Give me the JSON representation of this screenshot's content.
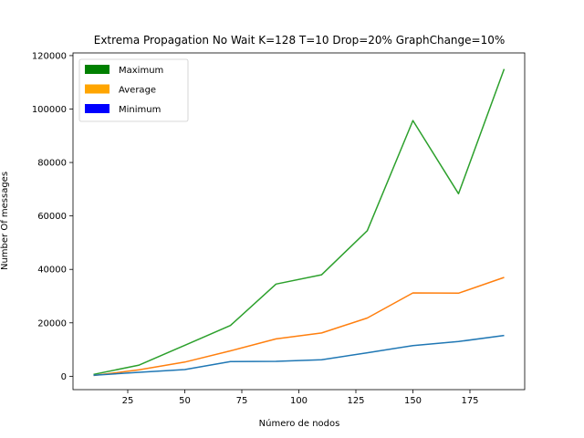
{
  "chart_data": {
    "type": "line",
    "title": "Extrema Propagation No Wait K=128 T=10 Drop=20% GraphChange=10%",
    "xlabel": "Número de nodos",
    "ylabel": "Number Of messages",
    "x": [
      10,
      30,
      50,
      70,
      90,
      110,
      130,
      150,
      170,
      190
    ],
    "xlim": [
      1,
      199
    ],
    "ylim": [
      -5000,
      121000
    ],
    "xticks": [
      25,
      50,
      75,
      100,
      125,
      150,
      175
    ],
    "xtick_labels": [
      "25",
      "50",
      "75",
      "100",
      "125",
      "150",
      "175"
    ],
    "yticks": [
      0,
      20000,
      40000,
      60000,
      80000,
      100000,
      120000
    ],
    "ytick_labels": [
      "0",
      "20000",
      "40000",
      "60000",
      "80000",
      "100000",
      "120000"
    ],
    "grid": false,
    "legend_position": "top-left",
    "legend": [
      {
        "label": "Maximum",
        "color": "#008000"
      },
      {
        "label": "Average",
        "color": "#ffa500"
      },
      {
        "label": "Minimum",
        "color": "#0000ff"
      }
    ],
    "series": [
      {
        "color": "#2ca02c",
        "values": [
          700,
          4200,
          11600,
          19000,
          34500,
          38000,
          54500,
          95700,
          68300,
          115000
        ]
      },
      {
        "color": "#ff7f0e",
        "values": [
          300,
          2400,
          5300,
          9500,
          14000,
          16200,
          21800,
          31200,
          31100,
          37000
        ]
      },
      {
        "color": "#1f77b4",
        "values": [
          400,
          1500,
          2500,
          5500,
          5600,
          6200,
          8800,
          11500,
          13000,
          15300
        ]
      }
    ]
  }
}
